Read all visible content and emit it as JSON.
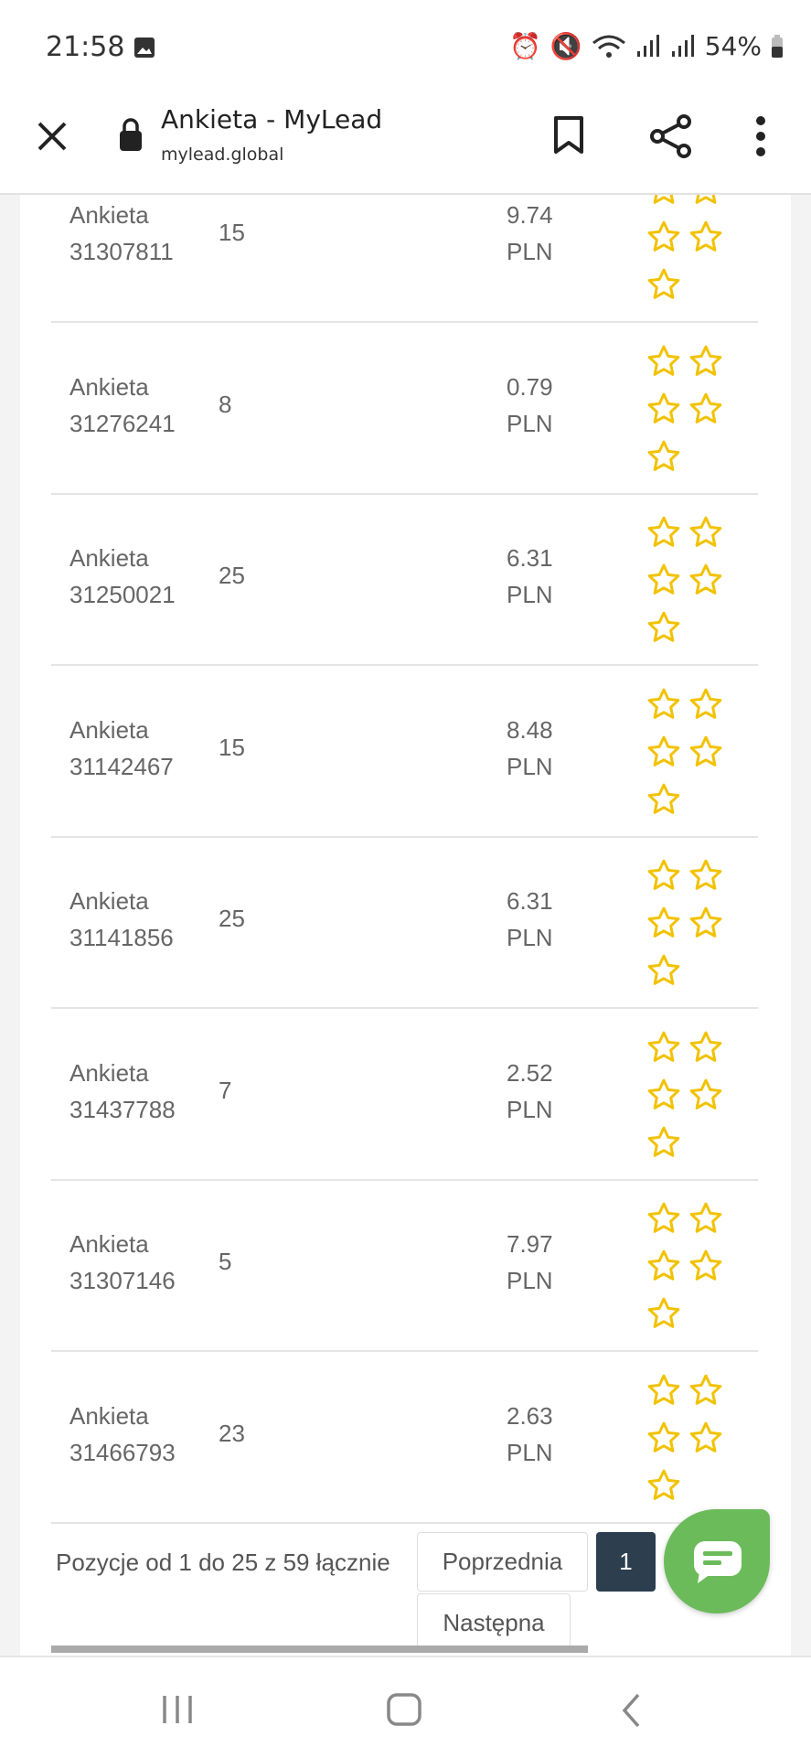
{
  "status_bar": {
    "time": "21:58",
    "battery": "54%"
  },
  "browser": {
    "title": "Ankieta - MyLead",
    "url": "mylead.global"
  },
  "rows": [
    {
      "name": "Ankieta",
      "id": "31307811",
      "count": "15",
      "price": "9.74",
      "currency": "PLN"
    },
    {
      "name": "Ankieta",
      "id": "31276241",
      "count": "8",
      "price": "0.79",
      "currency": "PLN"
    },
    {
      "name": "Ankieta",
      "id": "31250021",
      "count": "25",
      "price": "6.31",
      "currency": "PLN"
    },
    {
      "name": "Ankieta",
      "id": "31142467",
      "count": "15",
      "price": "8.48",
      "currency": "PLN"
    },
    {
      "name": "Ankieta",
      "id": "31141856",
      "count": "25",
      "price": "6.31",
      "currency": "PLN"
    },
    {
      "name": "Ankieta",
      "id": "31437788",
      "count": "7",
      "price": "2.52",
      "currency": "PLN"
    },
    {
      "name": "Ankieta",
      "id": "31307146",
      "count": "5",
      "price": "7.97",
      "currency": "PLN"
    },
    {
      "name": "Ankieta",
      "id": "31466793",
      "count": "23",
      "price": "2.63",
      "currency": "PLN"
    }
  ],
  "rating": {
    "stars_total": 5,
    "stars_filled": 0,
    "star_color": "#f2c200"
  },
  "pagination": {
    "info": "Pozycje od 1 do 25 z 59 łącznie",
    "prev": "Poprzednia",
    "current": "1",
    "next": "Następna"
  },
  "colors": {
    "active_page": "#2d3e4e",
    "chat_button": "#6bbb5a"
  }
}
